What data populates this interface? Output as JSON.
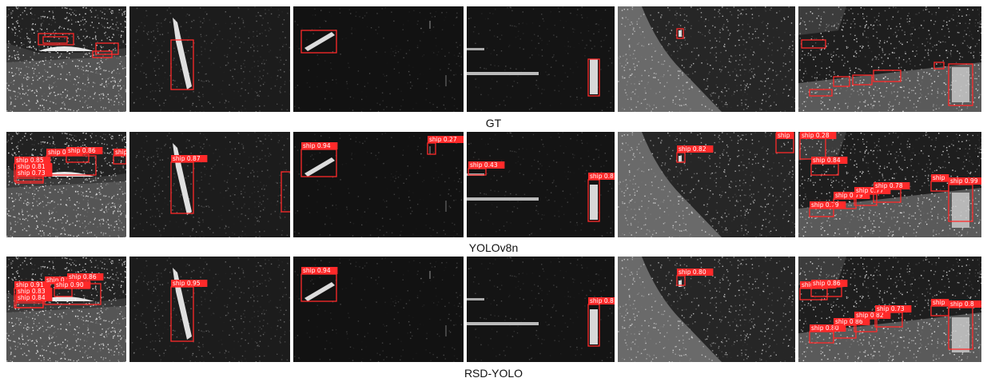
{
  "rows": [
    {
      "label": "GT",
      "panels": [
        {
          "boxes": [
            [
              40,
              34,
              44,
              14,
              ""
            ],
            [
              46,
              38,
              30,
              8,
              ""
            ],
            [
              112,
              46,
              28,
              14,
              ""
            ],
            [
              108,
              56,
              24,
              8,
              ""
            ]
          ]
        },
        {
          "boxes": [
            [
              52,
              42,
              28,
              62,
              ""
            ]
          ]
        },
        {
          "boxes": [
            [
              10,
              30,
              44,
              28,
              ""
            ]
          ]
        },
        {
          "boxes": [
            [
              152,
              66,
              14,
              46,
              ""
            ]
          ]
        },
        {
          "boxes": [
            [
              74,
              28,
              8,
              12,
              ""
            ]
          ]
        },
        {
          "boxes": [
            [
              4,
              42,
              30,
              10,
              ""
            ],
            [
              14,
              104,
              28,
              8,
              ""
            ],
            [
              44,
              88,
              20,
              12,
              ""
            ],
            [
              68,
              86,
              24,
              12,
              ""
            ],
            [
              94,
              80,
              34,
              14,
              ""
            ],
            [
              188,
              72,
              30,
              52,
              ""
            ],
            [
              170,
              70,
              12,
              8,
              ""
            ]
          ]
        }
      ]
    },
    {
      "label": "YOLOv8n",
      "panels": [
        {
          "boxes": [
            [
              10,
              40,
              36,
              22,
              "ship 0.85"
            ],
            [
              50,
              30,
              62,
              24,
              "ship 0.94"
            ],
            [
              75,
              28,
              28,
              10,
              "ship 0.86"
            ],
            [
              134,
              30,
              16,
              10,
              "ship"
            ],
            [
              12,
              48,
              34,
              10,
              "ship 0.81"
            ],
            [
              12,
              56,
              34,
              8,
              "ship 0.73"
            ]
          ]
        },
        {
          "boxes": [
            [
              52,
              38,
              28,
              64,
              "ship 0.87"
            ],
            [
              190,
              50,
              12,
              50,
              ""
            ]
          ]
        },
        {
          "boxes": [
            [
              10,
              22,
              44,
              34,
              "ship 0.94"
            ],
            [
              168,
              14,
              10,
              14,
              "ship 0.27"
            ]
          ]
        },
        {
          "boxes": [
            [
              2,
              46,
              22,
              8,
              "ship 0.43"
            ],
            [
              152,
              60,
              14,
              52,
              "ship 0.8"
            ]
          ]
        },
        {
          "boxes": [
            [
              74,
              26,
              10,
              12,
              "ship 0.82"
            ],
            [
              198,
              2,
              22,
              24,
              "ship"
            ]
          ]
        },
        {
          "boxes": [
            [
              2,
              2,
              32,
              32,
              "ship 0.28"
            ],
            [
              16,
              40,
              34,
              14,
              "ship 0.84"
            ],
            [
              14,
              96,
              30,
              10,
              "ship 0.79"
            ],
            [
              44,
              84,
              28,
              12,
              "ship 0.79"
            ],
            [
              70,
              78,
              28,
              14,
              "ship 0.77"
            ],
            [
              94,
              72,
              34,
              16,
              "ship 0.78"
            ],
            [
              188,
              66,
              30,
              46,
              "ship 0.99"
            ],
            [
              166,
              62,
              22,
              12,
              "ship"
            ]
          ]
        }
      ]
    },
    {
      "label": "RSD-YOLO",
      "panels": [
        {
          "boxes": [
            [
              10,
              40,
              36,
              24,
              "ship 0.91"
            ],
            [
              48,
              34,
              70,
              26,
              "ship 0.86"
            ],
            [
              76,
              30,
              28,
              10,
              "ship 0.86"
            ],
            [
              12,
              48,
              34,
              10,
              "ship 0.83"
            ],
            [
              12,
              56,
              34,
              8,
              "ship 0.84"
            ],
            [
              60,
              40,
              22,
              10,
              "ship 0.90"
            ]
          ]
        },
        {
          "boxes": [
            [
              52,
              38,
              28,
              68,
              "ship 0.95"
            ]
          ]
        },
        {
          "boxes": [
            [
              10,
              22,
              44,
              34,
              "ship 0.94"
            ]
          ]
        },
        {
          "boxes": [
            [
              152,
              60,
              14,
              52,
              "ship 0.8"
            ]
          ]
        },
        {
          "boxes": [
            [
              74,
              24,
              10,
              12,
              "ship 0.80"
            ]
          ]
        },
        {
          "boxes": [
            [
              2,
              40,
              34,
              14,
              "ship 0.85"
            ],
            [
              16,
              38,
              38,
              12,
              "ship 0.86"
            ],
            [
              14,
              94,
              30,
              14,
              "ship 0.80"
            ],
            [
              44,
              86,
              28,
              16,
              "ship 0.86"
            ],
            [
              70,
              78,
              28,
              16,
              "ship 0.82"
            ],
            [
              96,
              70,
              34,
              18,
              "ship 0.73"
            ],
            [
              188,
              64,
              30,
              52,
              "ship 0.8"
            ],
            [
              166,
              62,
              22,
              12,
              "ship"
            ]
          ]
        }
      ]
    }
  ]
}
